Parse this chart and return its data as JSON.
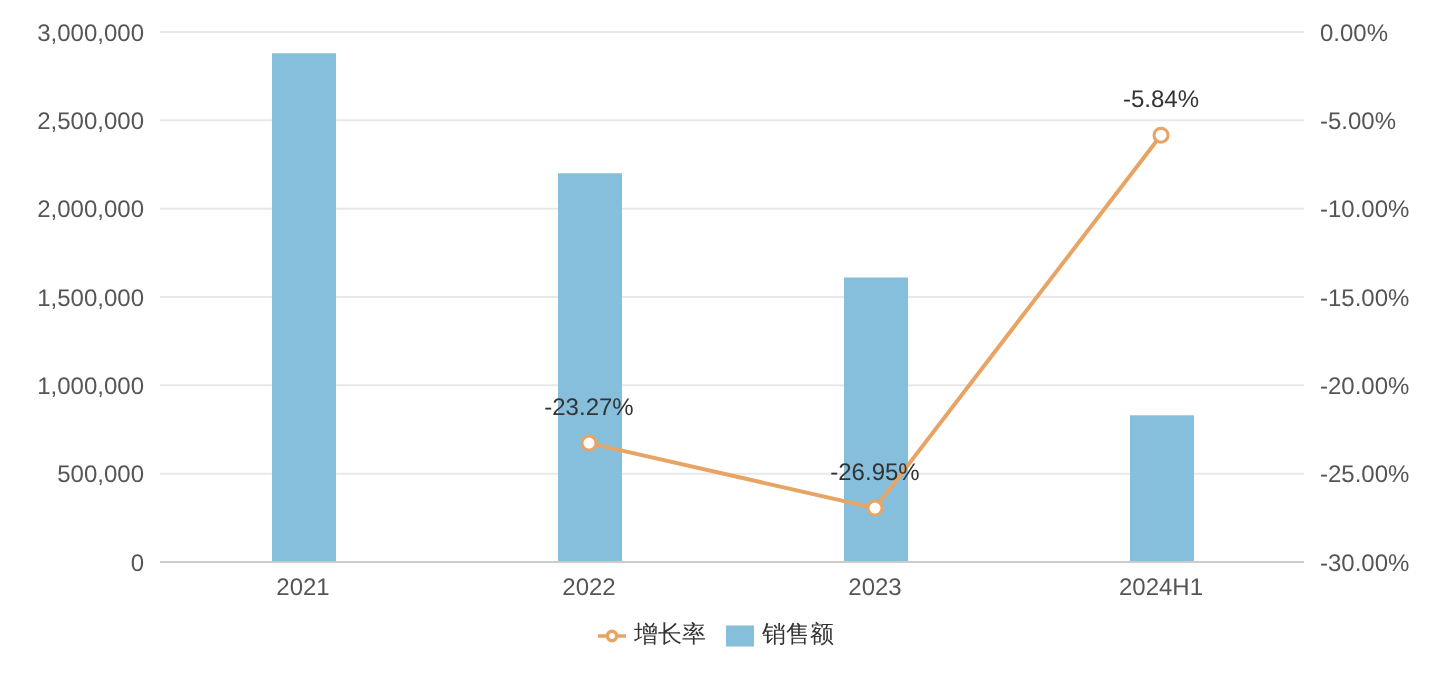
{
  "chart_data": {
    "type": "bar",
    "categories": [
      "2021",
      "2022",
      "2023",
      "2024H1"
    ],
    "series": [
      {
        "name": "销售额",
        "color": "#86bfdc",
        "values": [
          2880000,
          2200000,
          1610000,
          830000
        ]
      },
      {
        "name": "增长率",
        "type": "line",
        "axis": "y2",
        "color": "#e8a464",
        "values": [
          null,
          -23.27,
          -26.95,
          -5.84
        ],
        "value_labels": [
          null,
          "-23.27%",
          "-26.95%",
          "-5.84%"
        ]
      }
    ],
    "ylim": [
      0,
      3000000
    ],
    "yticks": [
      {
        "value": 0,
        "label": "0"
      },
      {
        "value": 500000,
        "label": "500,000"
      },
      {
        "value": 1000000,
        "label": "1,000,000"
      },
      {
        "value": 1500000,
        "label": "1,500,000"
      },
      {
        "value": 2000000,
        "label": "2,000,000"
      },
      {
        "value": 2500000,
        "label": "2,500,000"
      },
      {
        "value": 3000000,
        "label": "3,000,000"
      }
    ],
    "y2lim": [
      -30,
      0
    ],
    "y2ticks": [
      {
        "value": 0,
        "label": "0.00%"
      },
      {
        "value": -5,
        "label": "-5.00%"
      },
      {
        "value": -10,
        "label": "-10.00%"
      },
      {
        "value": -15,
        "label": "-15.00%"
      },
      {
        "value": -20,
        "label": "-20.00%"
      },
      {
        "value": -25,
        "label": "-25.00%"
      },
      {
        "value": -30,
        "label": "-30.00%"
      }
    ],
    "grid": "y",
    "legend": "bottom",
    "marker": "circle"
  }
}
